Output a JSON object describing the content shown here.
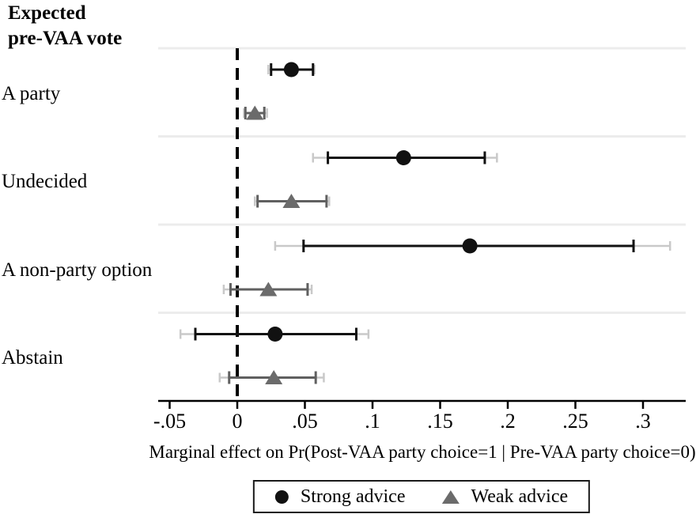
{
  "figure": {
    "title_line1": "Expected",
    "title_line2": "pre-VAA vote",
    "xlabel": "Marginal effect on Pr(Post-VAA party choice=1 | Pre-VAA party choice=0)",
    "legend": [
      {
        "label": "Strong advice",
        "marker": "circle-icon",
        "color": "#111111"
      },
      {
        "label": "Weak advice",
        "marker": "triangle-icon",
        "color": "#6b6b6b"
      }
    ]
  },
  "chart_data": {
    "type": "scatter",
    "subtype": "forest-plot-horizontal",
    "title": "Expected pre-VAA vote",
    "xlabel": "Marginal effect on Pr(Post-VAA party choice=1 | Pre-VAA party choice=0)",
    "xlim": [
      -0.058,
      0.332
    ],
    "x_ticks": [
      -0.05,
      0,
      0.05,
      0.1,
      0.15,
      0.2,
      0.25,
      0.3
    ],
    "x_tick_labels": [
      "-.05",
      "0",
      ".05",
      ".1",
      ".15",
      ".2",
      ".25",
      ".3"
    ],
    "zero_reference_line": 0,
    "grid": "horizontal band separators",
    "legend_position": "bottom",
    "categories": [
      "A party",
      "Undecided",
      "A non-party option",
      "Abstain"
    ],
    "series": [
      {
        "name": "Strong advice",
        "marker": "circle",
        "color": "#111111",
        "points": [
          {
            "category": "A party",
            "estimate": 0.04,
            "ci_inner": [
              0.025,
              0.056
            ],
            "ci_outer": [
              0.023,
              0.057
            ]
          },
          {
            "category": "Undecided",
            "estimate": 0.123,
            "ci_inner": [
              0.067,
              0.183
            ],
            "ci_outer": [
              0.056,
              0.192
            ]
          },
          {
            "category": "A non-party option",
            "estimate": 0.172,
            "ci_inner": [
              0.049,
              0.293
            ],
            "ci_outer": [
              0.028,
              0.32
            ]
          },
          {
            "category": "Abstain",
            "estimate": 0.028,
            "ci_inner": [
              -0.031,
              0.088
            ],
            "ci_outer": [
              -0.042,
              0.097
            ]
          }
        ]
      },
      {
        "name": "Weak advice",
        "marker": "triangle",
        "color": "#606060",
        "points": [
          {
            "category": "A party",
            "estimate": 0.013,
            "ci_inner": [
              0.006,
              0.02
            ],
            "ci_outer": [
              0.005,
              0.022
            ]
          },
          {
            "category": "Undecided",
            "estimate": 0.04,
            "ci_inner": [
              0.015,
              0.066
            ],
            "ci_outer": [
              0.013,
              0.068
            ]
          },
          {
            "category": "A non-party option",
            "estimate": 0.023,
            "ci_inner": [
              -0.005,
              0.052
            ],
            "ci_outer": [
              -0.01,
              0.055
            ]
          },
          {
            "category": "Abstain",
            "estimate": 0.027,
            "ci_inner": [
              -0.006,
              0.058
            ],
            "ci_outer": [
              -0.013,
              0.064
            ]
          }
        ]
      }
    ],
    "colors": {
      "strong": "#111111",
      "weak_line": "#606060",
      "weak_marker": "#6b6b6b",
      "outer_ci": "#c9c9c9",
      "gridline": "#ececec",
      "axis": "#000000"
    }
  }
}
